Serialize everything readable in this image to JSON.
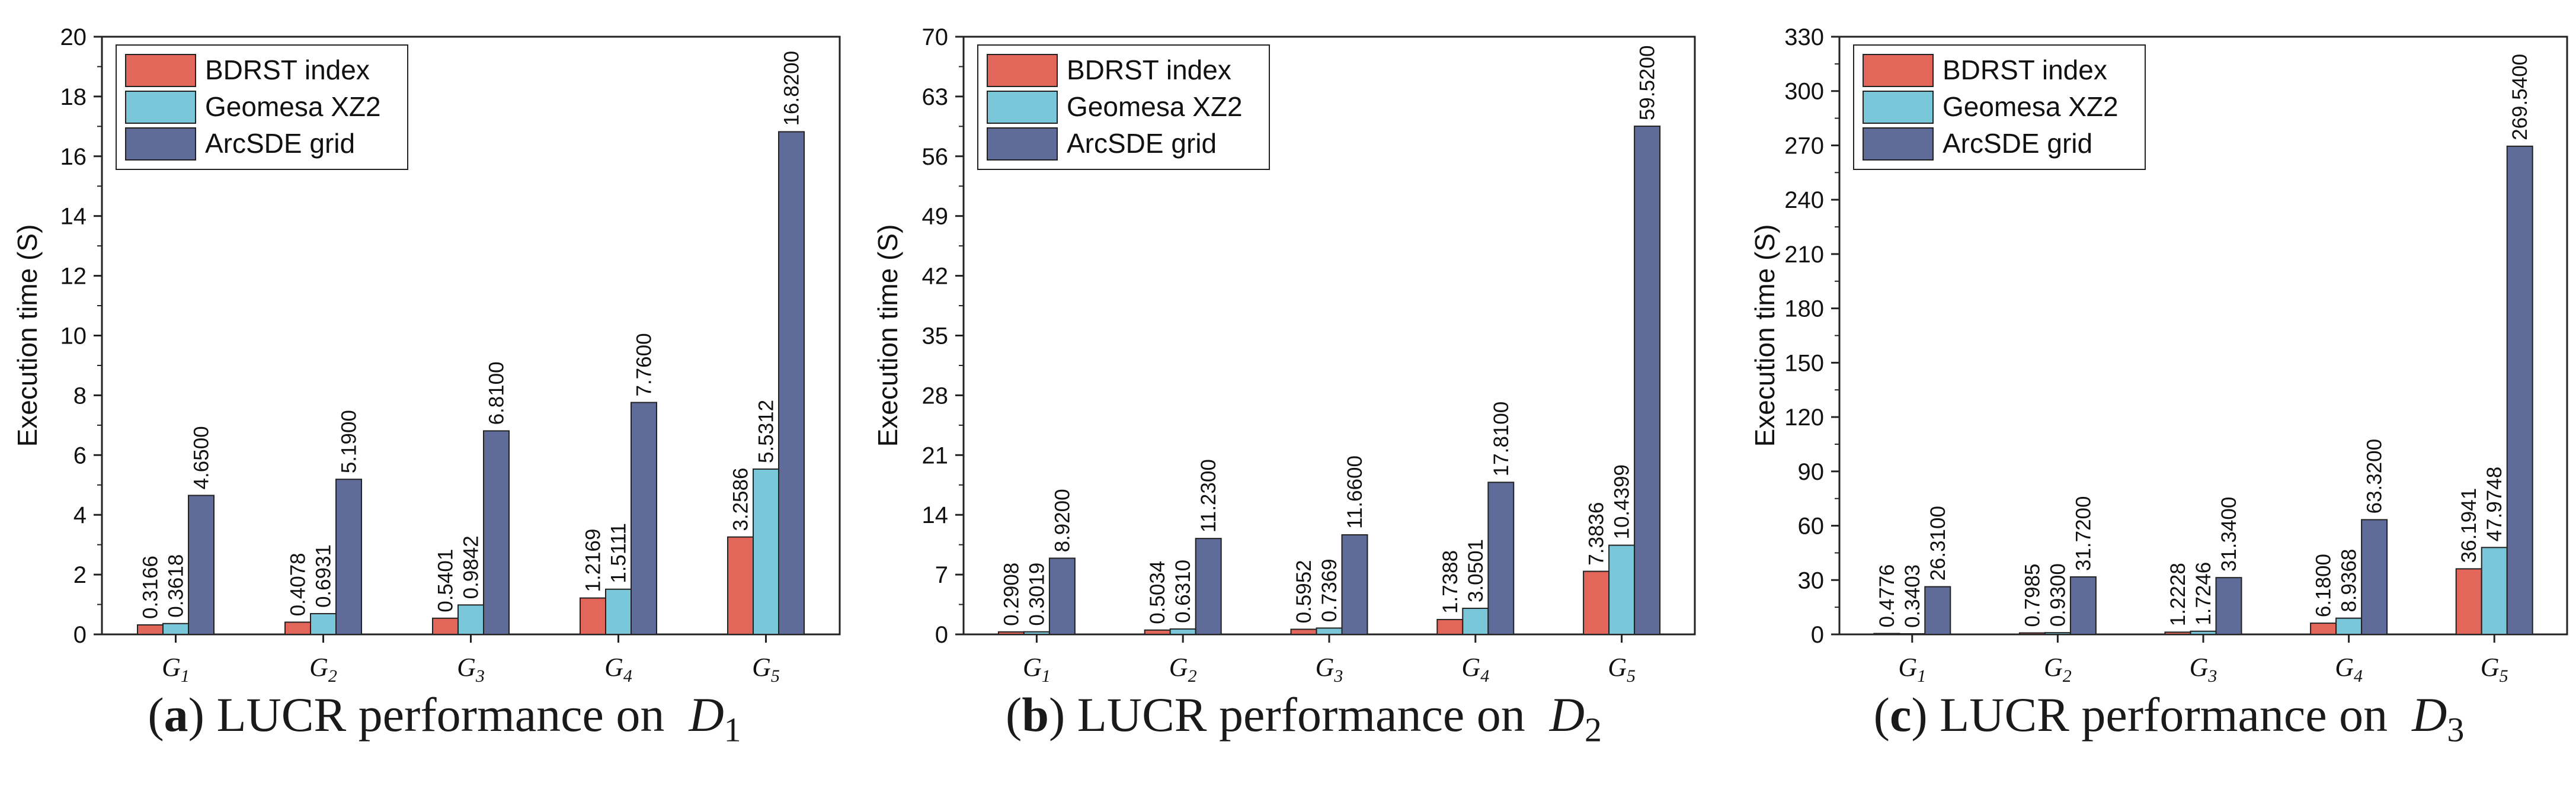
{
  "colors": {
    "bdrst": "#E2675A",
    "geomesa": "#7BC7DA",
    "arcsde": "#5F6B98",
    "axis": "#222222"
  },
  "chart_data": [
    {
      "type": "bar",
      "caption": {
        "letter": "a",
        "text": "LUCR performance on",
        "dataset": "D",
        "sub": "1"
      },
      "ylabel": "Execution time (S)",
      "xlabel": "",
      "ylim": [
        0,
        20
      ],
      "yticks": [
        "0",
        "2",
        "4",
        "6",
        "8",
        "10",
        "12",
        "14",
        "16",
        "18",
        "20"
      ],
      "categories": [
        {
          "base": "G",
          "sub": "1"
        },
        {
          "base": "G",
          "sub": "2"
        },
        {
          "base": "G",
          "sub": "3"
        },
        {
          "base": "G",
          "sub": "4"
        },
        {
          "base": "G",
          "sub": "5"
        }
      ],
      "series": [
        {
          "name": "BDRST index",
          "key": "bdrst",
          "values": [
            0.3166,
            0.4078,
            0.5401,
            1.2169,
            3.2586
          ],
          "labels": [
            "0.3166",
            "0.4078",
            "0.5401",
            "1.2169",
            "3.2586"
          ]
        },
        {
          "name": "Geomesa XZ2",
          "key": "geomesa",
          "values": [
            0.3618,
            0.6931,
            0.9842,
            1.5111,
            5.5312
          ],
          "labels": [
            "0.3618",
            "0.6931",
            "0.9842",
            "1.5111",
            "5.5312"
          ]
        },
        {
          "name": "ArcSDE grid",
          "key": "arcsde",
          "values": [
            4.65,
            5.19,
            6.81,
            7.76,
            16.82
          ],
          "labels": [
            "4.6500",
            "5.1900",
            "6.8100",
            "7.7600",
            "16.8200"
          ]
        }
      ],
      "legend": "top-left"
    },
    {
      "type": "bar",
      "caption": {
        "letter": "b",
        "text": "LUCR performance on",
        "dataset": "D",
        "sub": "2"
      },
      "ylabel": "Execution time (S)",
      "xlabel": "",
      "ylim": [
        0,
        70
      ],
      "yticks": [
        "0",
        "7",
        "14",
        "21",
        "28",
        "35",
        "42",
        "49",
        "56",
        "63",
        "70"
      ],
      "categories": [
        {
          "base": "G",
          "sub": "1"
        },
        {
          "base": "G",
          "sub": "2"
        },
        {
          "base": "G",
          "sub": "3"
        },
        {
          "base": "G",
          "sub": "4"
        },
        {
          "base": "G",
          "sub": "5"
        }
      ],
      "series": [
        {
          "name": "BDRST index",
          "key": "bdrst",
          "values": [
            0.2908,
            0.5034,
            0.5952,
            1.7388,
            7.3836
          ],
          "labels": [
            "0.2908",
            "0.5034",
            "0.5952",
            "1.7388",
            "7.3836"
          ]
        },
        {
          "name": "Geomesa XZ2",
          "key": "geomesa",
          "values": [
            0.3019,
            0.631,
            0.7369,
            3.0501,
            10.4399
          ],
          "labels": [
            "0.3019",
            "0.6310",
            "0.7369",
            "3.0501",
            "10.4399"
          ]
        },
        {
          "name": "ArcSDE grid",
          "key": "arcsde",
          "values": [
            8.92,
            11.23,
            11.66,
            17.81,
            59.52
          ],
          "labels": [
            "8.9200",
            "11.2300",
            "11.6600",
            "17.8100",
            "59.5200"
          ]
        }
      ],
      "legend": "top-left"
    },
    {
      "type": "bar",
      "caption": {
        "letter": "c",
        "text": "LUCR performance on",
        "dataset": "D",
        "sub": "3"
      },
      "ylabel": "Execution time (S)",
      "xlabel": "",
      "ylim": [
        0,
        330
      ],
      "yticks": [
        "0",
        "30",
        "60",
        "90",
        "120",
        "150",
        "180",
        "210",
        "240",
        "270",
        "300",
        "330"
      ],
      "categories": [
        {
          "base": "G",
          "sub": "1"
        },
        {
          "base": "G",
          "sub": "2"
        },
        {
          "base": "G",
          "sub": "3"
        },
        {
          "base": "G",
          "sub": "4"
        },
        {
          "base": "G",
          "sub": "5"
        }
      ],
      "series": [
        {
          "name": "BDRST index",
          "key": "bdrst",
          "values": [
            0.4776,
            0.7985,
            1.2228,
            6.18,
            36.1941
          ],
          "labels": [
            "0.4776",
            "0.7985",
            "1.2228",
            "6.1800",
            "36.1941"
          ]
        },
        {
          "name": "Geomesa XZ2",
          "key": "geomesa",
          "values": [
            0.3403,
            0.93,
            1.7246,
            8.9368,
            47.9748
          ],
          "labels": [
            "0.3403",
            "0.9300",
            "1.7246",
            "8.9368",
            "47.9748"
          ]
        },
        {
          "name": "ArcSDE grid",
          "key": "arcsde",
          "values": [
            26.31,
            31.72,
            31.34,
            63.32,
            269.54
          ],
          "labels": [
            "26.3100",
            "31.7200",
            "31.3400",
            "63.3200",
            "269.5400"
          ]
        }
      ],
      "legend": "top-left"
    }
  ]
}
